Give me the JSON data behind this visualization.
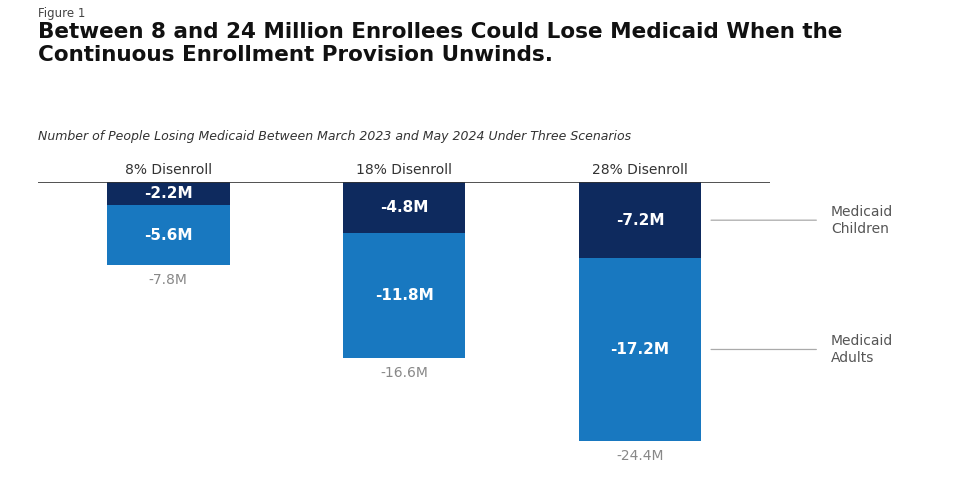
{
  "figure_label": "Figure 1",
  "title": "Between 8 and 24 Million Enrollees Could Lose Medicaid When the\nContinuous Enrollment Provision Unwinds.",
  "subtitle": "Number of People Losing Medicaid Between March 2023 and May 2024 Under Three Scenarios",
  "scenarios": [
    "8% Disenroll",
    "18% Disenroll",
    "28% Disenroll"
  ],
  "children_values": [
    2.2,
    4.8,
    7.2
  ],
  "adults_values": [
    5.6,
    11.8,
    17.2
  ],
  "totals": [
    "-7.8M",
    "-16.6M",
    "-24.4M"
  ],
  "children_labels": [
    "-2.2M",
    "-4.8M",
    "-7.2M"
  ],
  "adults_labels": [
    "-5.6M",
    "-11.8M",
    "-17.2M"
  ],
  "color_children": "#0e2a5e",
  "color_adults": "#1878c0",
  "background_color": "#ffffff",
  "bar_width": 0.52,
  "legend_children": "Medicaid\nChildren",
  "legend_adults": "Medicaid\nAdults",
  "total_color": "#888888",
  "text_color_white": "#ffffff",
  "ylim_max": 26.0,
  "bar_positions": [
    0,
    1,
    2
  ],
  "bar_gap": 0.35
}
